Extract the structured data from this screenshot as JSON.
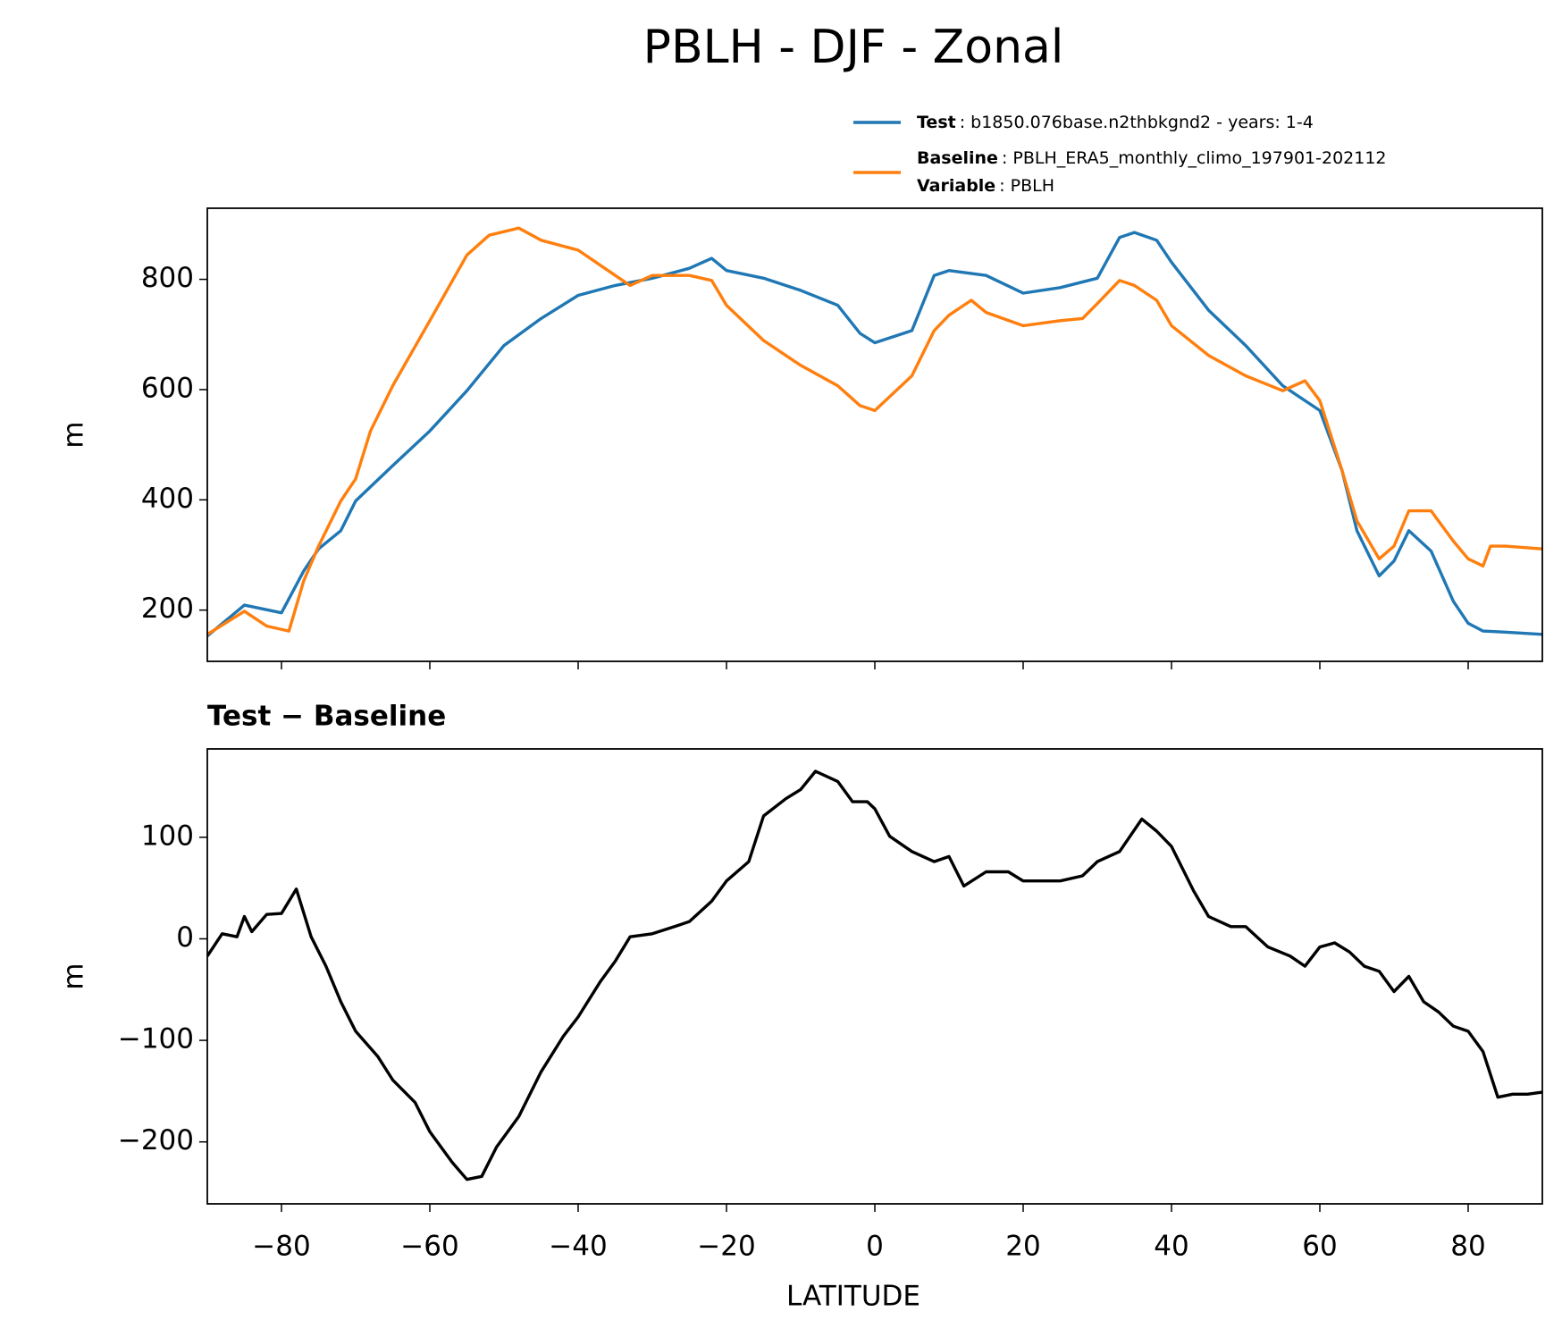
{
  "chart_data": [
    {
      "type": "line",
      "title": "PBLH - DJF - Zonal",
      "ylabel": "m",
      "xlim": [
        -90,
        90
      ],
      "xticks": [
        -80,
        -60,
        -40,
        -20,
        0,
        20,
        40,
        60,
        80
      ],
      "ylim": [
        107,
        929
      ],
      "yticks": [
        200,
        400,
        600,
        800
      ],
      "series": [
        {
          "name": "Test",
          "description": ": b1850.076base.n2thbkgnd2 - years: 1-4",
          "color": "#1f77b4",
          "x": [
            -90,
            -85,
            -80,
            -77,
            -75,
            -72,
            -70,
            -65,
            -60,
            -55,
            -50,
            -45,
            -40,
            -35,
            -30,
            -25,
            -22,
            -20,
            -15,
            -10,
            -5,
            -2,
            0,
            5,
            8,
            10,
            15,
            20,
            25,
            30,
            33,
            35,
            38,
            40,
            45,
            50,
            55,
            60,
            63,
            65,
            68,
            70,
            72,
            75,
            78,
            80,
            82,
            85,
            90
          ],
          "values": [
            153,
            209,
            195,
            271,
            311,
            344,
            398,
            462,
            525,
            598,
            680,
            729,
            771,
            789,
            802,
            820,
            838,
            816,
            802,
            780,
            753,
            702,
            685,
            707,
            807,
            816,
            807,
            775,
            785,
            802,
            876,
            885,
            871,
            831,
            744,
            680,
            607,
            562,
            453,
            344,
            262,
            289,
            344,
            307,
            216,
            176,
            162,
            160,
            156
          ]
        },
        {
          "name": "Baseline",
          "description": ": PBLH_ERA5_monthly_climo_197901-202112",
          "color": "#ff7f0e",
          "x": [
            -90,
            -85,
            -82,
            -79,
            -77,
            -75,
            -72,
            -70,
            -68,
            -65,
            -60,
            -55,
            -52,
            -48,
            -45,
            -40,
            -35,
            -33,
            -30,
            -25,
            -22,
            -20,
            -15,
            -10,
            -5,
            -2,
            0,
            5,
            8,
            10,
            13,
            15,
            20,
            25,
            28,
            30,
            33,
            35,
            38,
            40,
            45,
            50,
            55,
            58,
            60,
            63,
            65,
            68,
            70,
            72,
            75,
            78,
            80,
            82,
            83,
            85,
            90
          ],
          "values": [
            156,
            198,
            171,
            162,
            253,
            316,
            398,
            438,
            525,
            607,
            725,
            844,
            880,
            893,
            871,
            853,
            807,
            789,
            807,
            807,
            798,
            753,
            689,
            644,
            607,
            571,
            562,
            625,
            707,
            735,
            762,
            740,
            716,
            725,
            729,
            756,
            798,
            789,
            762,
            716,
            662,
            625,
            598,
            616,
            580,
            453,
            362,
            293,
            316,
            380,
            380,
            325,
            293,
            280,
            316,
            316,
            311
          ]
        }
      ],
      "legend_note": {
        "name": "Variable",
        "text": ": PBLH"
      }
    },
    {
      "type": "line",
      "title": "Test − Baseline",
      "xlabel": "LATITUDE",
      "ylabel": "m",
      "xlim": [
        -90,
        90
      ],
      "xticks": [
        {
          "value": -80,
          "label": "−80"
        },
        {
          "value": -60,
          "label": "−60"
        },
        {
          "value": -40,
          "label": "−40"
        },
        {
          "value": -20,
          "label": "−20"
        },
        0,
        20,
        40,
        60,
        80
      ],
      "ylim": [
        -261,
        187
      ],
      "yticks": [
        {
          "value": -200,
          "label": "−200"
        },
        {
          "value": -100,
          "label": "−100"
        },
        0,
        100
      ],
      "series": [
        {
          "color": "#000000",
          "x": [
            -90,
            -88,
            -86,
            -85,
            -84,
            -82,
            -80,
            -78,
            -76,
            -74,
            -72,
            -70,
            -67,
            -65,
            -62,
            -60,
            -57,
            -55,
            -53,
            -51,
            -48,
            -45,
            -42,
            -40,
            -37,
            -35,
            -33,
            -30,
            -27,
            -25,
            -22,
            -20,
            -17,
            -15,
            -12,
            -10,
            -8,
            -5,
            -3,
            -1,
            0,
            2,
            5,
            8,
            10,
            12,
            15,
            18,
            20,
            25,
            28,
            30,
            33,
            36,
            38,
            40,
            43,
            45,
            48,
            50,
            53,
            56,
            58,
            60,
            62,
            64,
            66,
            68,
            70,
            72,
            74,
            76,
            78,
            80,
            82,
            84,
            86,
            88,
            90
          ],
          "values": [
            -17,
            5,
            2,
            22,
            7,
            24,
            25,
            49,
            2,
            -27,
            -62,
            -91,
            -116,
            -139,
            -161,
            -190,
            -220,
            -237,
            -234,
            -205,
            -175,
            -131,
            -96,
            -77,
            -42,
            -22,
            2,
            5,
            12,
            17,
            37,
            57,
            76,
            121,
            138,
            147,
            165,
            155,
            135,
            135,
            128,
            101,
            86,
            76,
            81,
            52,
            66,
            66,
            57,
            57,
            62,
            76,
            86,
            118,
            106,
            91,
            47,
            22,
            12,
            12,
            -8,
            -17,
            -27,
            -8,
            -4,
            -13,
            -27,
            -32,
            -52,
            -37,
            -62,
            -72,
            -86,
            -91,
            -111,
            -156,
            -153,
            -153,
            -151
          ]
        }
      ]
    }
  ]
}
